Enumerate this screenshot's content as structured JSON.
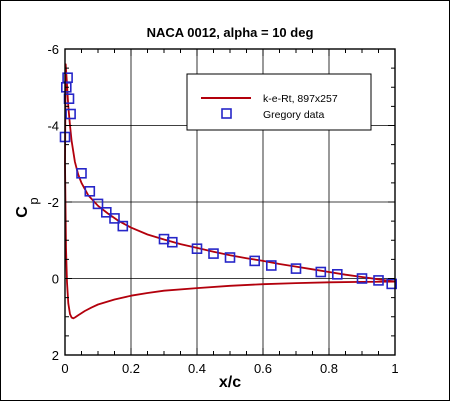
{
  "chart_data": {
    "type": "line",
    "title": "NACA 0012, alpha = 10 deg",
    "xlabel": "x/c",
    "ylabel": "C",
    "ylabel_sub": "p",
    "xlim": [
      0,
      1
    ],
    "ylim": [
      2,
      -6
    ],
    "y_inverted": true,
    "grid": true,
    "legend_position": "top-right",
    "x_ticks": [
      "0",
      "0.2",
      "0.4",
      "0.6",
      "0.8",
      "1"
    ],
    "x_tick_values": [
      0,
      0.2,
      0.4,
      0.6,
      0.8,
      1
    ],
    "y_ticks": [
      "-6",
      "-4",
      "-2",
      "0",
      "2"
    ],
    "y_tick_values": [
      -6,
      -4,
      -2,
      0,
      2
    ],
    "series": [
      {
        "name": "k-e-Rt, 897x257",
        "kind": "line",
        "color": "#b3000c",
        "upper": {
          "x": [
            0,
            0.002,
            0.005,
            0.01,
            0.015,
            0.02,
            0.03,
            0.04,
            0.05,
            0.07,
            0.1,
            0.13,
            0.16,
            0.2,
            0.25,
            0.3,
            0.35,
            0.4,
            0.45,
            0.5,
            0.55,
            0.6,
            0.65,
            0.7,
            0.75,
            0.8,
            0.85,
            0.9,
            0.95,
            1.0
          ],
          "y": [
            -3.0,
            -5.6,
            -5.2,
            -4.5,
            -4.0,
            -3.6,
            -3.05,
            -2.72,
            -2.5,
            -2.18,
            -1.9,
            -1.7,
            -1.52,
            -1.33,
            -1.15,
            -1.02,
            -0.9,
            -0.8,
            -0.7,
            -0.61,
            -0.53,
            -0.46,
            -0.38,
            -0.31,
            -0.24,
            -0.17,
            -0.1,
            -0.04,
            0.02,
            0.08
          ]
        },
        "lower": {
          "x": [
            0,
            0.003,
            0.006,
            0.01,
            0.015,
            0.02,
            0.025,
            0.03,
            0.04,
            0.06,
            0.08,
            0.1,
            0.15,
            0.2,
            0.25,
            0.3,
            0.4,
            0.5,
            0.6,
            0.7,
            0.8,
            0.9,
            1.0
          ],
          "y": [
            -3.0,
            -0.8,
            0.1,
            0.65,
            0.93,
            1.02,
            1.04,
            1.02,
            0.96,
            0.85,
            0.76,
            0.68,
            0.55,
            0.45,
            0.38,
            0.32,
            0.25,
            0.19,
            0.15,
            0.12,
            0.1,
            0.09,
            0.08
          ]
        }
      },
      {
        "name": "Gregory data",
        "kind": "markers",
        "color": "#2626c8",
        "x": [
          0.0,
          0.004,
          0.008,
          0.012,
          0.017,
          0.05,
          0.075,
          0.1,
          0.125,
          0.15,
          0.175,
          0.3,
          0.325,
          0.4,
          0.45,
          0.5,
          0.575,
          0.625,
          0.7,
          0.775,
          0.825,
          0.9,
          0.95,
          0.99
        ],
        "y": [
          -3.7,
          -5.0,
          -5.25,
          -4.7,
          -4.3,
          -2.75,
          -2.28,
          -1.95,
          -1.73,
          -1.57,
          -1.37,
          -1.03,
          -0.95,
          -0.78,
          -0.65,
          -0.55,
          -0.46,
          -0.34,
          -0.26,
          -0.17,
          -0.11,
          0.0,
          0.05,
          0.14
        ]
      }
    ]
  }
}
